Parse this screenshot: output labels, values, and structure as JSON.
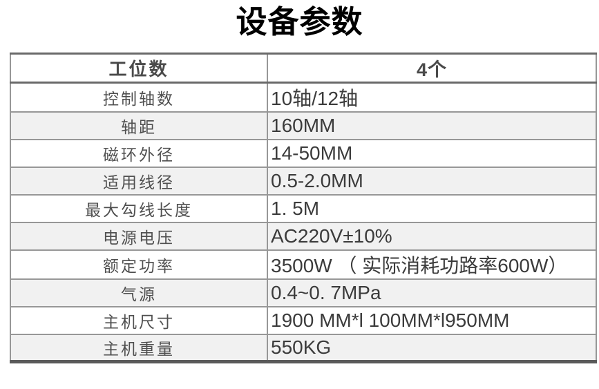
{
  "page": {
    "title": "设备参数"
  },
  "table": {
    "header": {
      "label": "工位数",
      "value": "4个"
    },
    "rows": [
      {
        "label": "控制轴数",
        "value": "10轴/12轴"
      },
      {
        "label": "轴距",
        "value": "160MM"
      },
      {
        "label": "磁环外径",
        "value": "14-50MM"
      },
      {
        "label": "适用线径",
        "value": "0.5-2.0MM"
      },
      {
        "label": "最大勾线长度",
        "value": "1. 5M"
      },
      {
        "label": "电源电压",
        "value": "AC220V±10%"
      },
      {
        "label": "额定功率",
        "value": "3500W （ 实际消耗功路率600W）"
      },
      {
        "label": "气源",
        "value": "0.4~0. 7MPa"
      },
      {
        "label": "主机尺寸",
        "value": "1900 MM*l 100MM*l950MM"
      },
      {
        "label": "主机重量",
        "value": "550KG"
      }
    ]
  },
  "colors": {
    "title_text": "#000000",
    "label_text": "#4f4f4f",
    "value_text": "#3b3b3b",
    "row_alt_background": "#f1f1f1",
    "border_outer_dark": "#696969",
    "border_inner": "#979797",
    "border_bottom_thick": "#5a5a5a"
  }
}
